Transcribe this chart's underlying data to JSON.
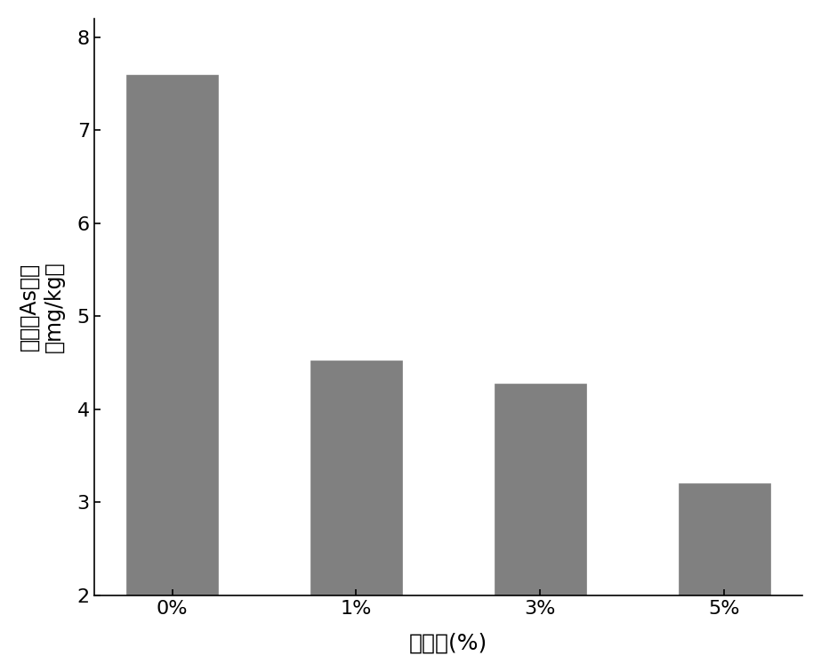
{
  "categories": [
    "0%",
    "1%",
    "3%",
    "5%"
  ],
  "values": [
    7.6,
    4.52,
    4.27,
    3.2
  ],
  "bar_color": "#808080",
  "bar_edge_color": "#808080",
  "title": "",
  "xlabel": "添加量(%)",
  "ylabel_line1": "有效态As含量",
  "ylabel_line2": "（mg/kg）",
  "ylim": [
    2,
    8.2
  ],
  "yticks": [
    2,
    3,
    4,
    5,
    6,
    7,
    8
  ],
  "background_color": "#ffffff",
  "bar_width": 0.5,
  "xlabel_fontsize": 18,
  "ylabel_fontsize": 17,
  "tick_fontsize": 16,
  "figsize": [
    9.23,
    7.55
  ],
  "dpi": 100
}
